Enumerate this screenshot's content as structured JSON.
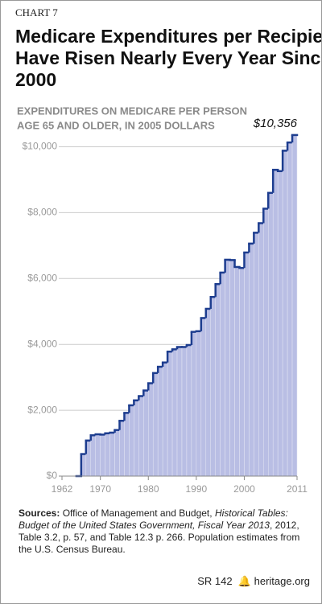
{
  "chart_data": {
    "type": "step-area",
    "kicker": "CHART 7",
    "title_lines": [
      "Medicare Expenditures per Recipient",
      "Have Risen Nearly Every Year Since",
      "2000"
    ],
    "subtitle_lines": [
      "EXPENDITURES ON MEDICARE PER PERSON",
      "AGE 65 AND OLDER, IN 2005 DOLLARS"
    ],
    "x": [
      1965,
      1966,
      1967,
      1968,
      1969,
      1970,
      1971,
      1972,
      1973,
      1974,
      1975,
      1976,
      1977,
      1978,
      1979,
      1980,
      1981,
      1982,
      1983,
      1984,
      1985,
      1986,
      1987,
      1988,
      1989,
      1990,
      1991,
      1992,
      1993,
      1994,
      1995,
      1996,
      1997,
      1998,
      1999,
      2000,
      2001,
      2002,
      2003,
      2004,
      2005,
      2006,
      2007,
      2008,
      2009,
      2010
    ],
    "values": [
      0,
      670,
      1080,
      1240,
      1270,
      1260,
      1300,
      1320,
      1400,
      1680,
      1920,
      2150,
      2300,
      2430,
      2600,
      2820,
      3130,
      3320,
      3450,
      3780,
      3850,
      3920,
      3920,
      3980,
      4380,
      4400,
      4800,
      5080,
      5440,
      5830,
      6180,
      6570,
      6560,
      6350,
      6320,
      6790,
      7060,
      7390,
      7680,
      8120,
      8600,
      9300,
      9260,
      9880,
      10130,
      10356
    ],
    "value_labels": [
      null,
      null,
      null,
      null,
      null,
      null,
      null,
      null,
      null,
      null,
      null,
      null,
      null,
      null,
      null,
      null,
      null,
      null,
      null,
      null,
      null,
      null,
      null,
      null,
      null,
      null,
      null,
      null,
      null,
      null,
      null,
      null,
      null,
      null,
      null,
      null,
      null,
      null,
      null,
      null,
      null,
      null,
      null,
      null,
      null,
      "$10,356"
    ],
    "line_color": "#1d3d8f",
    "fill_color": "#b9bee4",
    "xlim": [
      1962,
      2011
    ],
    "xticks": [
      1962,
      1970,
      1980,
      1990,
      2000,
      2011
    ],
    "ylim": [
      0,
      10500
    ],
    "yticks": [
      {
        "value": 0,
        "label": "$0"
      },
      {
        "value": 2000,
        "label": "$2,000"
      },
      {
        "value": 4000,
        "label": "$4,000"
      },
      {
        "value": 6000,
        "label": "$6,000"
      },
      {
        "value": 8000,
        "label": "$8,000"
      },
      {
        "value": 10000,
        "label": "$10,000"
      }
    ],
    "grid": true,
    "sources": {
      "label": "Sources:",
      "text1": "Office of Management and Budget,",
      "italic": "Historical Tables: Budget of the United States Government, Fiscal Year 2013",
      "text2": ", 2012, Table 3.2, p. 57, and Table 12.3 p. 266. Population estimates from the U.S. Census Bureau."
    },
    "footer": {
      "report": "SR 142",
      "site": "heritage.org"
    }
  }
}
